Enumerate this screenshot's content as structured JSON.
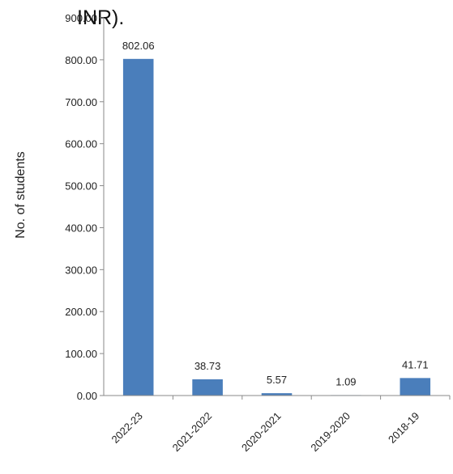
{
  "chart_data": {
    "type": "bar",
    "title": "INR).",
    "ylabel": "No. of students",
    "xlabel": "",
    "categories": [
      "2022-23",
      "2021-2022",
      "2020-2021",
      "2019-2020",
      "2018-19"
    ],
    "values": [
      802.06,
      38.73,
      5.57,
      1.09,
      41.71
    ],
    "data_labels": [
      "802.06",
      "38.73",
      "5.57",
      "1.09",
      "41.71"
    ],
    "ylim": [
      0,
      900
    ],
    "yticks": [
      0,
      100,
      200,
      300,
      400,
      500,
      600,
      700,
      800,
      900
    ],
    "ytick_labels": [
      "0.00",
      "100.00",
      "200.00",
      "300.00",
      "400.00",
      "500.00",
      "600.00",
      "700.00",
      "800.00",
      "900.00"
    ],
    "grid": false,
    "legend": "none",
    "bar_color": "#4a7ebb"
  }
}
